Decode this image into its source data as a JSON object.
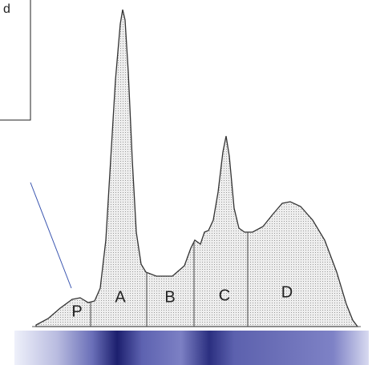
{
  "callout": {
    "text": "d"
  },
  "regions": [
    {
      "label": "P"
    },
    {
      "label": "A"
    },
    {
      "label": "B"
    },
    {
      "label": "C"
    },
    {
      "label": "D"
    }
  ]
}
